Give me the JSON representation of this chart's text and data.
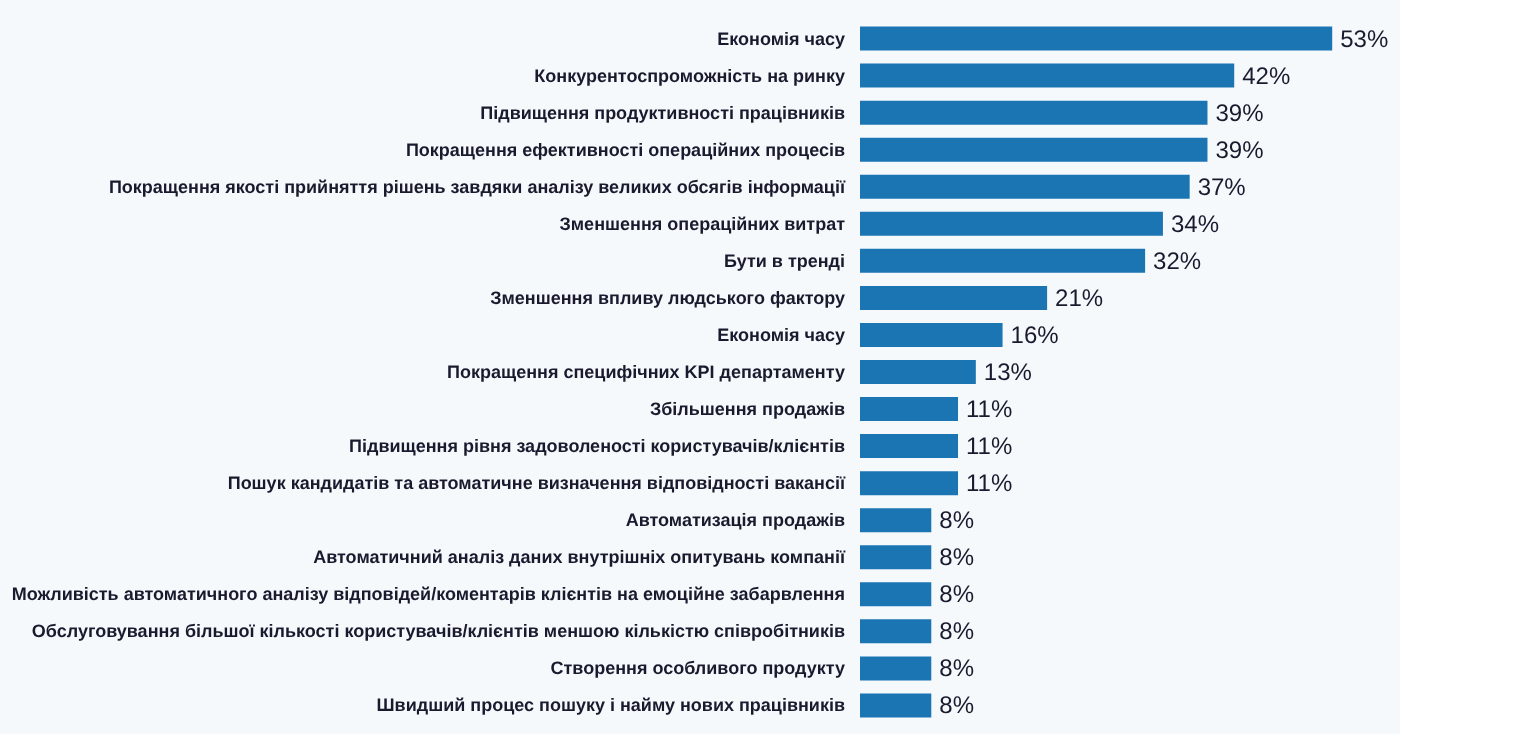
{
  "chart_data": {
    "type": "bar",
    "orientation": "horizontal",
    "categories": [
      "Економія часу",
      "Конкурентоспроможність на ринку",
      "Підвищення продуктивності працівників",
      "Покращення ефективності операційних процесів",
      "Покращення якості прийняття рішень завдяки аналізу великих обсягів інформації",
      "Зменшення операційних витрат",
      "Бути в тренді",
      "Зменшення впливу людського фактору",
      "Економія часу",
      "Покращення специфічних KPI департаменту",
      "Збільшення продажів",
      "Підвищення рівня задоволеності користувачів/клієнтів",
      "Пошук кандидатів та автоматичне визначення відповідності вакансії",
      "Автоматизація продажів",
      "Автоматичний аналіз даних внутрішніх опитувань компанії",
      "Можливість автоматичного аналізу відповідей/коментарів клієнтів на емоційне забарвлення",
      "Обслуговування більшої кількості користувачів/клієнтів меншою кількістю співробітників",
      "Створення особливого продукту",
      "Швидший процес пошуку і найму нових працівників"
    ],
    "values": [
      53,
      42,
      39,
      39,
      37,
      34,
      32,
      21,
      16,
      13,
      11,
      11,
      11,
      8,
      8,
      8,
      8,
      8,
      8
    ],
    "value_labels": [
      "53%",
      "42%",
      "39%",
      "39%",
      "37%",
      "34%",
      "32%",
      "21%",
      "16%",
      "13%",
      "11%",
      "11%",
      "11%",
      "8%",
      "8%",
      "8%",
      "8%",
      "8%",
      "8%"
    ],
    "color": "#1b75b3"
  }
}
